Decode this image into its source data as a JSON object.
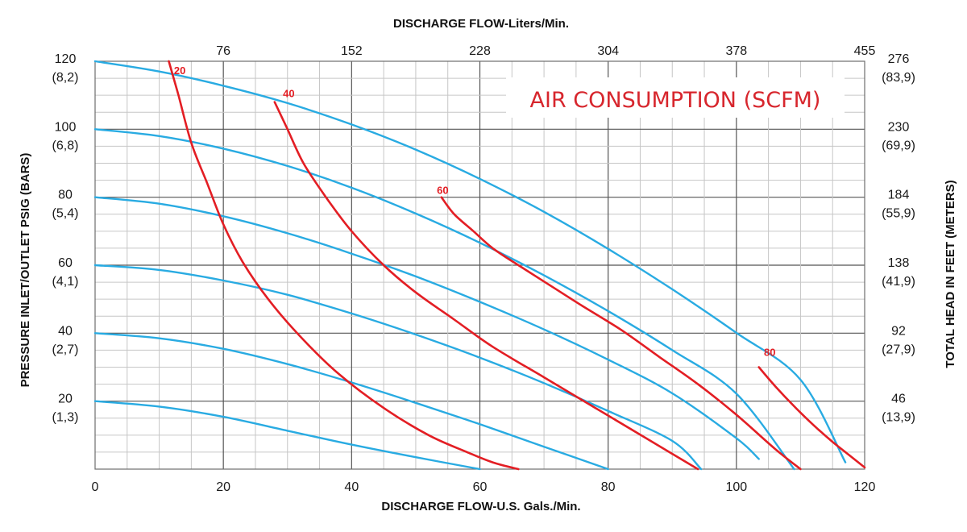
{
  "chart_data": {
    "type": "line",
    "title": "AIR CONSUMPTION (SCFM)",
    "xlabel": "DISCHARGE FLOW-U.S. Gals./Min.",
    "x2label": "DISCHARGE FLOW-Liters/Min.",
    "ylabel": "PRESSURE INLET/OUTLET PSIG (BARS)",
    "y2label": "TOTAL HEAD IN FEET (METERS)",
    "xlim": [
      0,
      120
    ],
    "ylim": [
      0,
      120
    ],
    "x_ticks": [
      0,
      20,
      40,
      60,
      80,
      100,
      120
    ],
    "x_tick_labels": [
      "0",
      "20",
      "40",
      "60",
      "80",
      "100",
      "120"
    ],
    "x2_ticks": [
      20,
      40,
      60,
      80,
      100,
      120
    ],
    "x2_tick_labels": [
      "76",
      "152",
      "228",
      "304",
      "378",
      "455"
    ],
    "y_ticks": [
      20,
      40,
      60,
      80,
      100,
      120
    ],
    "y_tick_labels_psig": [
      "20",
      "40",
      "60",
      "80",
      "100",
      "120"
    ],
    "y_tick_labels_bar": [
      "(1,3)",
      "(2,7)",
      "(4,1)",
      "(5,4)",
      "(6,8)",
      "(8,2)"
    ],
    "y2_tick_labels_feet": [
      "46",
      "92",
      "138",
      "184",
      "230",
      "276"
    ],
    "y2_tick_labels_meters": [
      "(13,9)",
      "(27,9)",
      "(41,9)",
      "(55,9)",
      "(69,9)",
      "(83,9)"
    ],
    "grid": true,
    "series": [
      {
        "name": "20 psig air inlet",
        "kind": "performance",
        "color": "#29abe2",
        "x": [
          0,
          10,
          20,
          30,
          40,
          50,
          60
        ],
        "y": [
          20,
          18.4,
          15.4,
          11.3,
          7.2,
          3.5,
          0
        ]
      },
      {
        "name": "40 psig air inlet",
        "kind": "performance",
        "color": "#29abe2",
        "x": [
          0,
          10,
          20,
          30,
          40,
          50,
          60,
          70,
          80
        ],
        "y": [
          40,
          38.5,
          35.4,
          30.9,
          25.5,
          19.5,
          13.2,
          6.6,
          0
        ]
      },
      {
        "name": "60 psig air inlet",
        "kind": "performance",
        "color": "#29abe2",
        "x": [
          0,
          10,
          20,
          30,
          40,
          50,
          60,
          70,
          80,
          90,
          94.5
        ],
        "y": [
          60,
          58.6,
          55.5,
          51.3,
          45.8,
          39.6,
          32.8,
          25.3,
          17.1,
          8.3,
          0
        ]
      },
      {
        "name": "80 psig air inlet",
        "kind": "performance",
        "color": "#29abe2",
        "x": [
          0,
          10,
          20,
          30,
          40,
          50,
          60,
          70,
          80,
          90,
          100,
          103.5
        ],
        "y": [
          80,
          78.1,
          74.4,
          69.4,
          63.4,
          56.7,
          49.2,
          41.1,
          32.2,
          22.3,
          9.1,
          3
        ]
      },
      {
        "name": "100 psig air inlet",
        "kind": "performance",
        "color": "#29abe2",
        "x": [
          0,
          10,
          20,
          30,
          40,
          50,
          60,
          70,
          80,
          90,
          100,
          109
        ],
        "y": [
          100,
          98,
          94.3,
          89.2,
          82.8,
          75.2,
          66.6,
          57,
          46.5,
          35,
          22.2,
          0
        ]
      },
      {
        "name": "120 psig air inlet",
        "kind": "performance",
        "color": "#29abe2",
        "x": [
          0,
          10,
          20,
          30,
          40,
          50,
          60,
          70,
          80,
          90,
          100,
          110,
          117
        ],
        "y": [
          120,
          117,
          112.8,
          107.7,
          101.4,
          94,
          85.4,
          75.7,
          64.8,
          52.9,
          40.1,
          26.3,
          2
        ]
      },
      {
        "name": "20 SCFM",
        "kind": "air",
        "label": "20",
        "color": "#e31e24",
        "x": [
          11.5,
          13,
          15,
          17.5,
          20,
          23,
          27,
          32,
          38,
          45,
          52,
          58,
          62,
          66
        ],
        "y": [
          120,
          110,
          96,
          84,
          72,
          61,
          50,
          39,
          28,
          18,
          10,
          5,
          2,
          0
        ]
      },
      {
        "name": "40 SCFM",
        "kind": "air",
        "label": "40",
        "color": "#e31e24",
        "x": [
          28,
          30,
          32.5,
          36,
          40,
          45,
          50,
          56,
          62,
          70,
          78,
          86,
          94
        ],
        "y": [
          108,
          100,
          90,
          80,
          70,
          60,
          52,
          44,
          36,
          27,
          18,
          9,
          0
        ]
      },
      {
        "name": "60 SCFM",
        "kind": "air",
        "label": "60",
        "color": "#e31e24",
        "x": [
          54,
          56,
          59,
          62,
          66,
          71,
          76,
          82,
          88,
          94,
          100,
          106,
          110
        ],
        "y": [
          80,
          75,
          70,
          65,
          60,
          54,
          48,
          41,
          33,
          25,
          16,
          6,
          0
        ]
      },
      {
        "name": "80 SCFM",
        "kind": "air",
        "label": "80",
        "color": "#e31e24",
        "x": [
          103.5,
          106,
          109,
          112,
          115,
          118,
          120
        ],
        "y": [
          30,
          24.5,
          18.5,
          13,
          8,
          3.5,
          0.5
        ]
      }
    ]
  }
}
